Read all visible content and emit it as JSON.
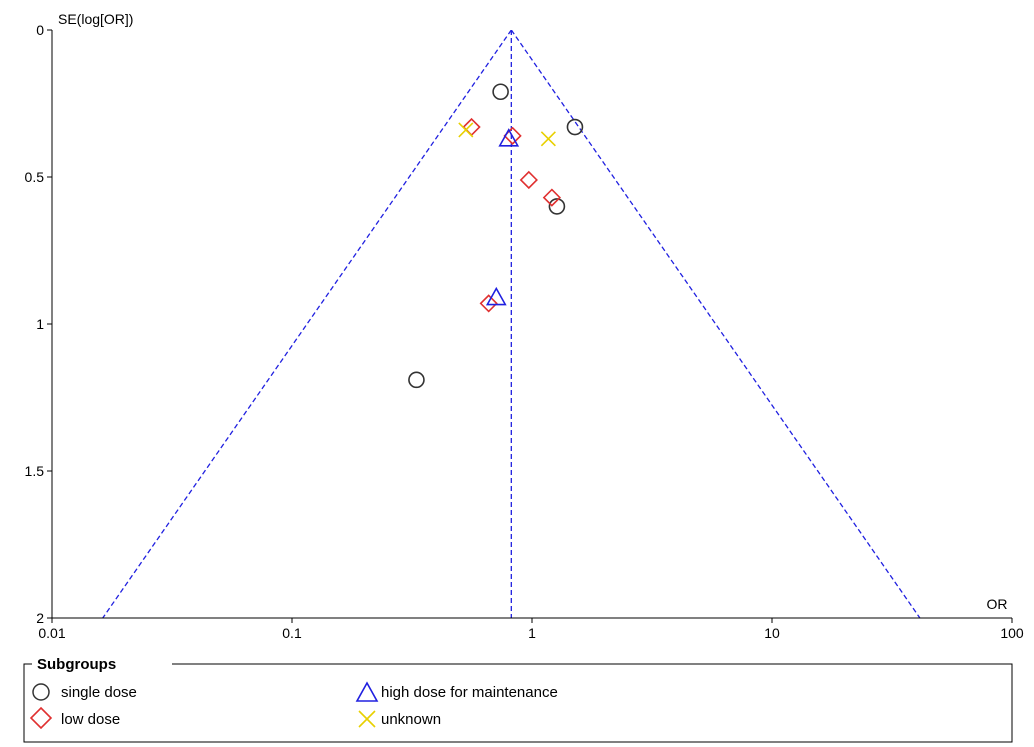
{
  "chart_data": {
    "type": "scatter",
    "xlabel": "OR",
    "ylabel": "SE(log[OR])",
    "x_scale": "log",
    "xlim": [
      0.01,
      100
    ],
    "ylim": [
      0,
      2
    ],
    "y_inverted": true,
    "x_ticks": [
      "0.01",
      "0.1",
      "1",
      "10",
      "100"
    ],
    "y_ticks": [
      "0",
      "0.5",
      "1",
      "1.5",
      "2"
    ],
    "pooled_or": 0.82,
    "funnel_color": "#2020e0",
    "legend": {
      "title": "Subgroups",
      "placement": "bottom",
      "entries": [
        {
          "name": "single dose",
          "marker": "circle-icon",
          "color": "#333333"
        },
        {
          "name": "low dose",
          "marker": "diamond-icon",
          "color": "#e03030"
        },
        {
          "name": "high dose for maintenance",
          "marker": "triangle-icon",
          "color": "#2020e0"
        },
        {
          "name": "unknown",
          "marker": "cross-icon",
          "color": "#e8d000"
        }
      ]
    },
    "series": [
      {
        "name": "single dose",
        "marker": "circle",
        "color": "#333333",
        "points": [
          {
            "x": 0.74,
            "y": 0.21
          },
          {
            "x": 1.51,
            "y": 0.33
          },
          {
            "x": 1.27,
            "y": 0.6
          },
          {
            "x": 0.33,
            "y": 1.19
          }
        ]
      },
      {
        "name": "low dose",
        "marker": "diamond",
        "color": "#e03030",
        "points": [
          {
            "x": 0.56,
            "y": 0.33
          },
          {
            "x": 0.83,
            "y": 0.36
          },
          {
            "x": 0.97,
            "y": 0.51
          },
          {
            "x": 1.21,
            "y": 0.57
          },
          {
            "x": 0.66,
            "y": 0.93
          }
        ]
      },
      {
        "name": "high dose for maintenance",
        "marker": "triangle",
        "color": "#2020e0",
        "points": [
          {
            "x": 0.8,
            "y": 0.37
          },
          {
            "x": 0.71,
            "y": 0.91
          }
        ]
      },
      {
        "name": "unknown",
        "marker": "cross",
        "color": "#e8d000",
        "points": [
          {
            "x": 0.53,
            "y": 0.34
          },
          {
            "x": 1.17,
            "y": 0.37
          }
        ]
      }
    ]
  }
}
